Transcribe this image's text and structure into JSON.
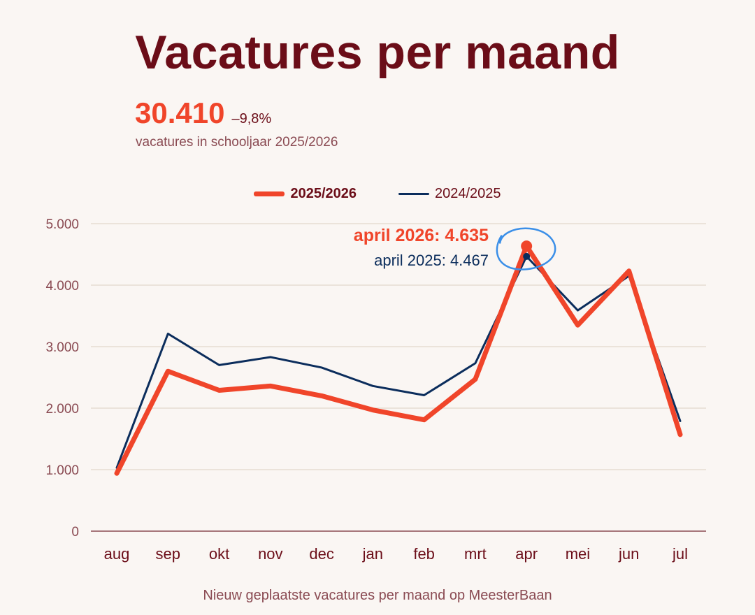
{
  "title": "Vacatures per maand",
  "kpi": {
    "value": "30.410",
    "change": "–9,8%",
    "subtitle": "vacatures in schooljaar 2025/2026"
  },
  "legend": [
    {
      "label": "2025/2026",
      "color": "#f0452a"
    },
    {
      "label": "2024/2025",
      "color": "#0b2d5c"
    }
  ],
  "caption": "Nieuw geplaatste vacatures per maand op MeesterBaan",
  "annotations": {
    "primary": "april 2026: 4.635",
    "secondary": "april 2025: 4.467",
    "highlight_color": "#3b8fe8"
  },
  "chart_data": {
    "type": "line",
    "categories": [
      "aug",
      "sep",
      "okt",
      "nov",
      "dec",
      "jan",
      "feb",
      "mrt",
      "apr",
      "mei",
      "jun",
      "jul"
    ],
    "series": [
      {
        "name": "2025/2026",
        "color": "#f0452a",
        "values": [
          940,
          2600,
          2290,
          2360,
          2200,
          1970,
          1810,
          2470,
          4635,
          3350,
          4230,
          1570
        ]
      },
      {
        "name": "2024/2025",
        "color": "#0b2d5c",
        "values": [
          1030,
          3210,
          2700,
          2830,
          2660,
          2360,
          2210,
          2730,
          4467,
          3590,
          4150,
          1790
        ]
      }
    ],
    "ylim": [
      0,
      5000
    ],
    "yticks": [
      0,
      1000,
      2000,
      3000,
      4000,
      5000
    ],
    "ytick_labels": [
      "0",
      "1.000",
      "2.000",
      "3.000",
      "4.000",
      "5.000"
    ],
    "highlight_index": 8,
    "grid": true,
    "legend_position": "top-center"
  }
}
